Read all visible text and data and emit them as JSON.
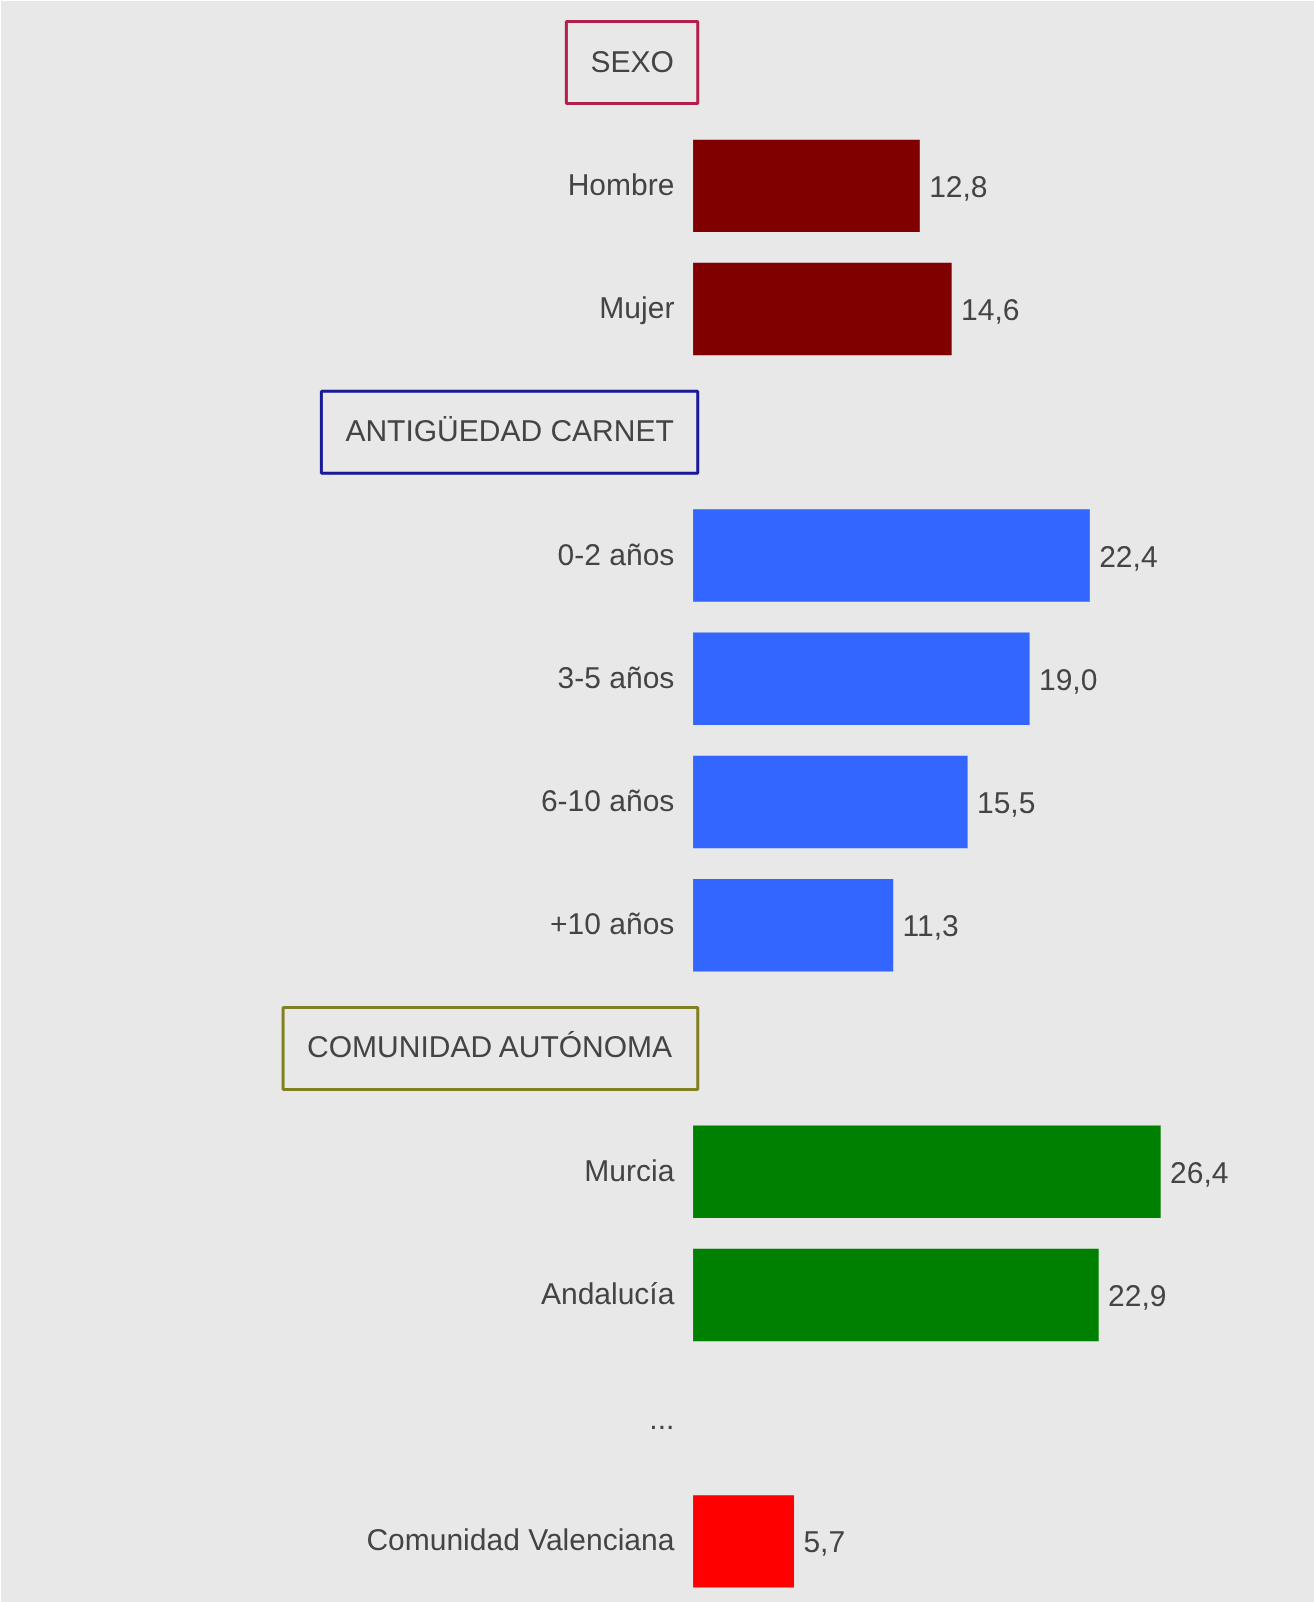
{
  "chart_data": {
    "type": "bar",
    "orientation": "horizontal",
    "categories": [
      "SEXO",
      "Hombre",
      "Mujer",
      "ANTIGÜEDAD CARNET",
      "0-2 años",
      "3-5 años",
      "6-10 años",
      "+10 años",
      "COMUNIDAD AUTÓNOMA",
      "Murcia",
      "Andalucía",
      "...",
      "Comunidad Valenciana"
    ],
    "values": [
      null,
      12.8,
      14.6,
      null,
      22.4,
      19.0,
      15.5,
      11.3,
      null,
      26.4,
      22.9,
      null,
      5.7
    ],
    "colors": [
      "#b0204a",
      "#800000",
      "#800000",
      "#1a1a99",
      "#3366ff",
      "#3366ff",
      "#3366ff",
      "#3366ff",
      "#808020",
      "#008000",
      "#008000",
      null,
      "#ff0000"
    ],
    "value_labels": [
      null,
      "12,8",
      "14,6",
      null,
      "22,4",
      "19,0",
      "15,5",
      "11,3",
      null,
      "26,4",
      "22,9",
      null,
      "5,7"
    ]
  }
}
